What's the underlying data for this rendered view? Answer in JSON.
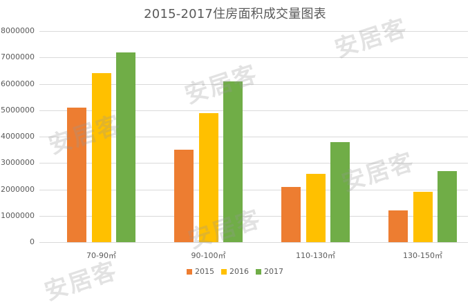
{
  "chart_data": {
    "type": "bar",
    "title": "2015-2017住房面积成交量图表",
    "categories": [
      "70-90㎡",
      "90-100㎡",
      "110-130㎡",
      "130-150㎡"
    ],
    "series": [
      {
        "name": "2015",
        "color": "#ED7D31",
        "values": [
          5100000,
          3500000,
          2100000,
          1200000
        ]
      },
      {
        "name": "2016",
        "color": "#FFC000",
        "values": [
          6400000,
          4900000,
          2600000,
          1900000
        ]
      },
      {
        "name": "2017",
        "color": "#70AD47",
        "values": [
          7200000,
          6100000,
          3800000,
          2700000
        ]
      }
    ],
    "xlabel": "",
    "ylabel": "",
    "ylim": [
      0,
      8000000
    ],
    "yticks": [
      "8000000",
      "7000000",
      "6000000",
      "5000000",
      "4000000",
      "3000000",
      "2000000",
      "1000000",
      "0"
    ],
    "grid": true,
    "legend_position": "bottom"
  },
  "watermark": "安居客"
}
